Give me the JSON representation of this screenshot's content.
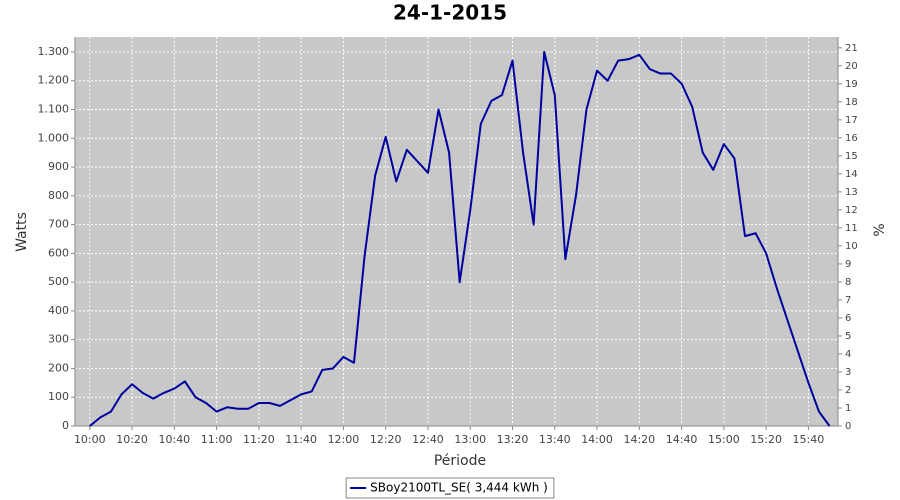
{
  "chart_data": {
    "type": "line",
    "title": "24-1-2015",
    "x_label": "Période",
    "y_label": "Watts",
    "y2_label": "%",
    "x": [
      "10:00",
      "10:05",
      "10:10",
      "10:15",
      "10:20",
      "10:25",
      "10:30",
      "10:35",
      "10:40",
      "10:45",
      "10:50",
      "10:55",
      "11:00",
      "11:05",
      "11:10",
      "11:15",
      "11:20",
      "11:25",
      "11:30",
      "11:35",
      "11:40",
      "11:45",
      "11:50",
      "11:55",
      "12:00",
      "12:05",
      "12:10",
      "12:15",
      "12:20",
      "12:25",
      "12:30",
      "12:35",
      "12:40",
      "12:45",
      "12:50",
      "12:55",
      "13:00",
      "13:05",
      "13:10",
      "13:15",
      "13:20",
      "13:25",
      "13:30",
      "13:35",
      "13:40",
      "13:45",
      "13:50",
      "13:55",
      "14:00",
      "14:05",
      "14:10",
      "14:15",
      "14:20",
      "14:25",
      "14:30",
      "14:35",
      "14:40",
      "14:45",
      "14:50",
      "14:55",
      "15:00",
      "15:05",
      "15:10",
      "15:15",
      "15:20",
      "15:25",
      "15:30",
      "15:35",
      "15:40",
      "15:45",
      "15:50"
    ],
    "series": [
      {
        "name": "SBoy2100TL_SE( 3,444 kWh )",
        "color": "#0000a0",
        "values": [
          0,
          30,
          50,
          110,
          145,
          115,
          95,
          115,
          130,
          155,
          100,
          80,
          50,
          65,
          60,
          60,
          80,
          80,
          70,
          90,
          110,
          120,
          195,
          200,
          240,
          220,
          590,
          870,
          1005,
          850,
          960,
          920,
          880,
          1100,
          950,
          500,
          750,
          1050,
          1130,
          1150,
          1270,
          950,
          700,
          1300,
          1150,
          580,
          800,
          1100,
          1235,
          1200,
          1270,
          1275,
          1290,
          1240,
          1225,
          1225,
          1190,
          1110,
          950,
          890,
          980,
          930,
          660,
          670,
          600,
          480,
          370,
          260,
          150,
          50,
          0
        ]
      }
    ],
    "xlim": [
      "09:53",
      "15:54"
    ],
    "xticks": [
      "10:00",
      "10:20",
      "10:40",
      "11:00",
      "11:20",
      "11:40",
      "12:00",
      "12:20",
      "12:40",
      "13:00",
      "13:20",
      "13:40",
      "14:00",
      "14:20",
      "14:40",
      "15:00",
      "15:20",
      "15:40"
    ],
    "ylim": [
      0,
      1352
    ],
    "yticks": [
      0,
      100,
      200,
      300,
      400,
      500,
      600,
      700,
      800,
      900,
      {
        "value": 1000,
        "label": "1.000"
      },
      {
        "value": 1100,
        "label": "1.100"
      },
      {
        "value": 1200,
        "label": "1.200"
      },
      {
        "value": 1300,
        "label": "1.300"
      }
    ],
    "y2lim": [
      0,
      21.6
    ],
    "y2ticks": [
      0,
      1,
      2,
      3,
      4,
      5,
      6,
      7,
      8,
      9,
      10,
      11,
      12,
      13,
      14,
      15,
      16,
      17,
      18,
      19,
      20,
      21
    ],
    "grid": true,
    "plot_background": "#c8c8c8",
    "legend": "bottom"
  }
}
